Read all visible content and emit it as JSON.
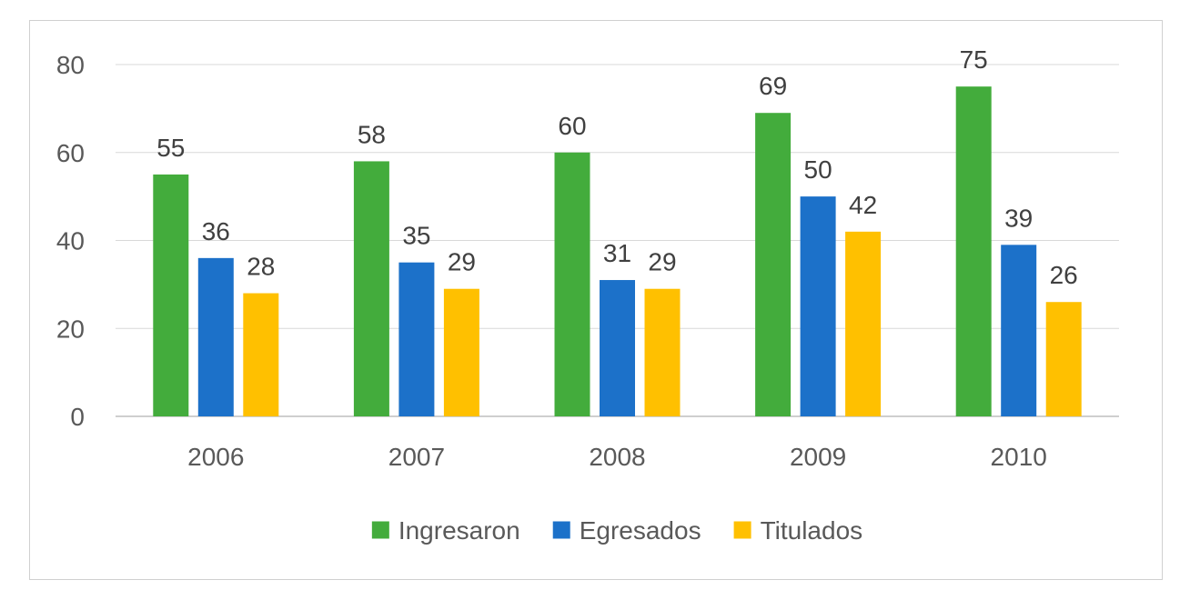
{
  "chart_data": {
    "type": "bar",
    "title": "",
    "xlabel": "",
    "ylabel": "",
    "categories": [
      "2006",
      "2007",
      "2008",
      "2009",
      "2010"
    ],
    "series": [
      {
        "name": "Ingresaron",
        "color": "#43AC3C",
        "values": [
          55,
          58,
          60,
          69,
          75
        ]
      },
      {
        "name": "Egresados",
        "color": "#1C71C9",
        "values": [
          36,
          35,
          31,
          50,
          39
        ]
      },
      {
        "name": "Titulados",
        "color": "#FFC000",
        "values": [
          28,
          29,
          29,
          42,
          26
        ]
      }
    ],
    "ylim": [
      0,
      80
    ],
    "yticks": [
      0,
      20,
      40,
      60,
      80
    ],
    "grid": true,
    "data_labels": true,
    "legend_position": "bottom"
  }
}
